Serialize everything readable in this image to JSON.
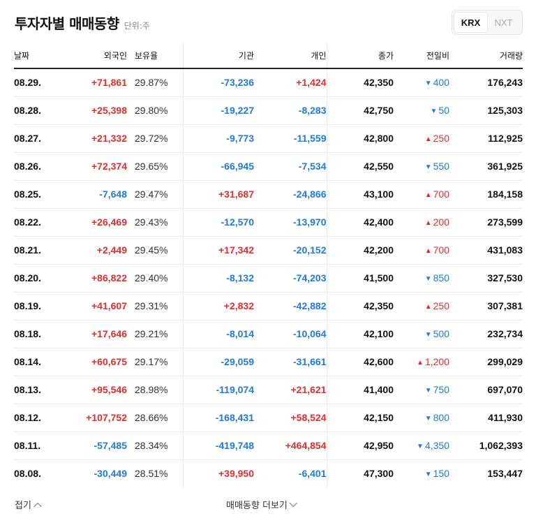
{
  "header": {
    "title": "투자자별 매매동향",
    "unit": "단위:주"
  },
  "market_toggle": [
    {
      "label": "KRX",
      "active": true
    },
    {
      "label": "NXT",
      "active": false
    }
  ],
  "table": {
    "columns": [
      "날짜",
      "외국인",
      "보유율",
      "기관",
      "개인",
      "종가",
      "전일비",
      "거래량"
    ],
    "rows": [
      {
        "date": "08.29.",
        "foreign": "+71,861",
        "own": "29.87%",
        "inst": "-73,236",
        "indiv": "+1,424",
        "close": "42,350",
        "dir": "down",
        "chg": "400",
        "vol": "176,243"
      },
      {
        "date": "08.28.",
        "foreign": "+25,398",
        "own": "29.80%",
        "inst": "-19,227",
        "indiv": "-8,283",
        "close": "42,750",
        "dir": "down",
        "chg": "50",
        "vol": "125,303"
      },
      {
        "date": "08.27.",
        "foreign": "+21,332",
        "own": "29.72%",
        "inst": "-9,773",
        "indiv": "-11,559",
        "close": "42,800",
        "dir": "up",
        "chg": "250",
        "vol": "112,925"
      },
      {
        "date": "08.26.",
        "foreign": "+72,374",
        "own": "29.65%",
        "inst": "-66,945",
        "indiv": "-7,534",
        "close": "42,550",
        "dir": "down",
        "chg": "550",
        "vol": "361,925"
      },
      {
        "date": "08.25.",
        "foreign": "-7,648",
        "own": "29.47%",
        "inst": "+31,687",
        "indiv": "-24,866",
        "close": "43,100",
        "dir": "up",
        "chg": "700",
        "vol": "184,158"
      },
      {
        "date": "08.22.",
        "foreign": "+26,469",
        "own": "29.43%",
        "inst": "-12,570",
        "indiv": "-13,970",
        "close": "42,400",
        "dir": "up",
        "chg": "200",
        "vol": "273,599"
      },
      {
        "date": "08.21.",
        "foreign": "+2,449",
        "own": "29.45%",
        "inst": "+17,342",
        "indiv": "-20,152",
        "close": "42,200",
        "dir": "up",
        "chg": "700",
        "vol": "431,083"
      },
      {
        "date": "08.20.",
        "foreign": "+86,822",
        "own": "29.40%",
        "inst": "-8,132",
        "indiv": "-74,203",
        "close": "41,500",
        "dir": "down",
        "chg": "850",
        "vol": "327,530"
      },
      {
        "date": "08.19.",
        "foreign": "+41,607",
        "own": "29.31%",
        "inst": "+2,832",
        "indiv": "-42,882",
        "close": "42,350",
        "dir": "up",
        "chg": "250",
        "vol": "307,381"
      },
      {
        "date": "08.18.",
        "foreign": "+17,646",
        "own": "29.21%",
        "inst": "-8,014",
        "indiv": "-10,064",
        "close": "42,100",
        "dir": "down",
        "chg": "500",
        "vol": "232,734"
      },
      {
        "date": "08.14.",
        "foreign": "+60,675",
        "own": "29.17%",
        "inst": "-29,059",
        "indiv": "-31,661",
        "close": "42,600",
        "dir": "up",
        "chg": "1,200",
        "vol": "299,029"
      },
      {
        "date": "08.13.",
        "foreign": "+95,546",
        "own": "28.98%",
        "inst": "-119,074",
        "indiv": "+21,621",
        "close": "41,400",
        "dir": "down",
        "chg": "750",
        "vol": "697,070"
      },
      {
        "date": "08.12.",
        "foreign": "+107,752",
        "own": "28.66%",
        "inst": "-168,431",
        "indiv": "+58,524",
        "close": "42,150",
        "dir": "down",
        "chg": "800",
        "vol": "411,930"
      },
      {
        "date": "08.11.",
        "foreign": "-57,485",
        "own": "28.34%",
        "inst": "-419,748",
        "indiv": "+464,854",
        "close": "42,950",
        "dir": "down",
        "chg": "4,350",
        "vol": "1,062,393"
      },
      {
        "date": "08.08.",
        "foreign": "-30,449",
        "own": "28.51%",
        "inst": "+39,950",
        "indiv": "-6,401",
        "close": "47,300",
        "dir": "down",
        "chg": "150",
        "vol": "153,447"
      }
    ]
  },
  "footer": {
    "collapse_label": "접기",
    "more_label": "매매동향 더보기"
  },
  "colors": {
    "up": "#e12d2d",
    "down": "#1f7ad9"
  }
}
